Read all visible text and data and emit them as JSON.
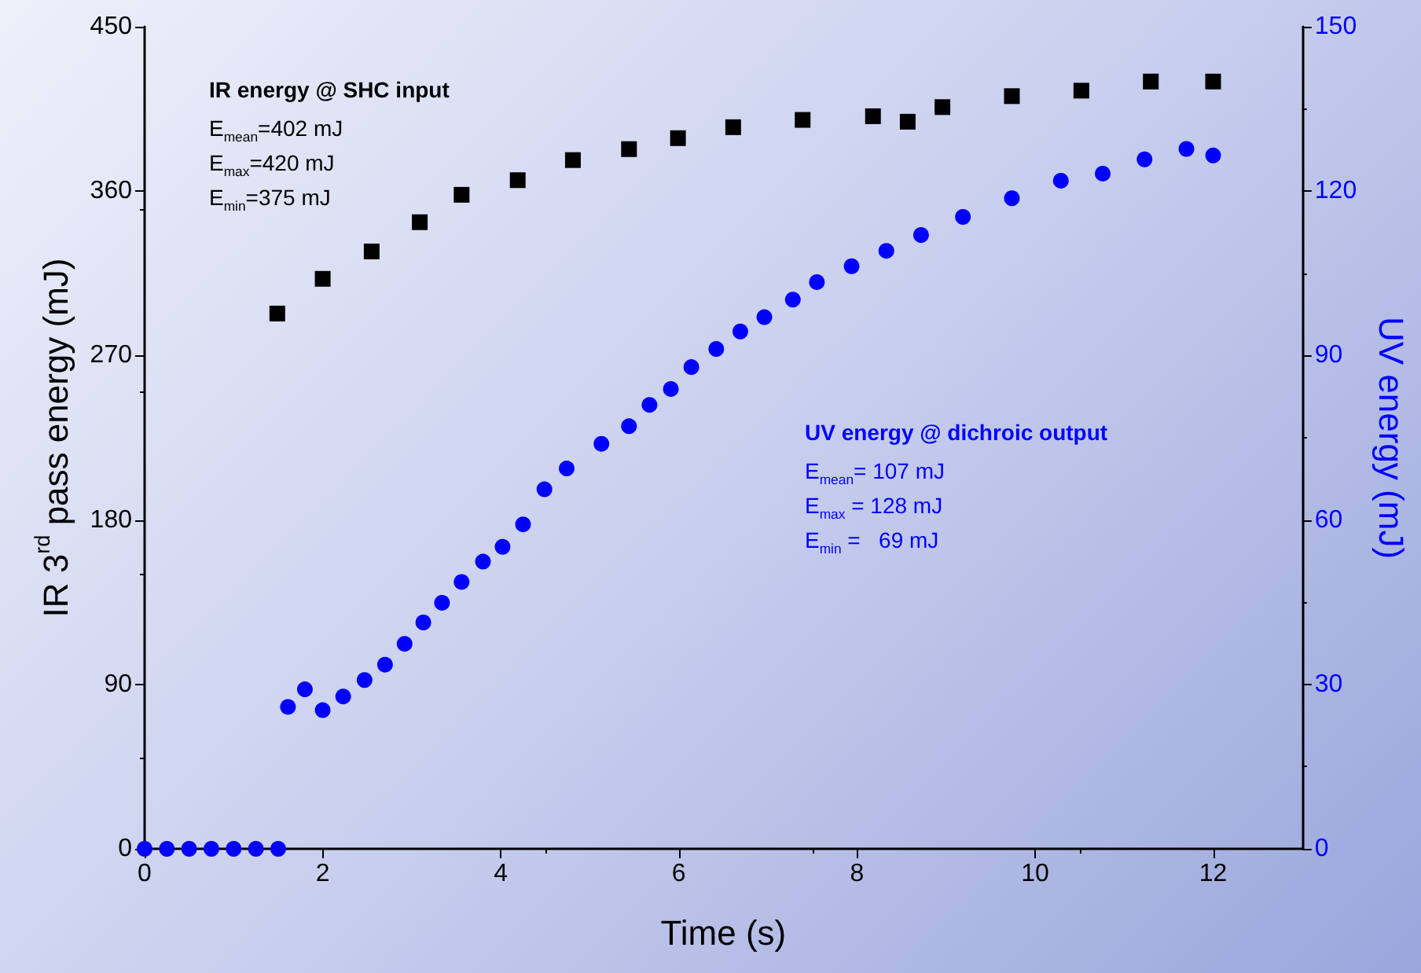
{
  "chart_data": {
    "type": "scatter",
    "xlabel": "Time (s)",
    "ylabel": "IR 3$^{rd}$ pass energy (mJ)",
    "y2label": "UV energy (mJ)",
    "xlim": [
      0,
      13
    ],
    "xticks": [
      0,
      2,
      4,
      6,
      8,
      10,
      12
    ],
    "ylim": [
      0,
      450
    ],
    "yticks": [
      0,
      90,
      180,
      270,
      360,
      450
    ],
    "y2lim": [
      0,
      150
    ],
    "y2ticks": [
      0,
      30,
      60,
      90,
      120,
      150
    ],
    "grid": false,
    "annotations": [
      "IR energy @ SHC input",
      "E$_{mean}$=402 mJ",
      "E$_{max}$=420 mJ",
      "E$_{min}$=375 mJ",
      "UV energy @ dichroic output",
      "E$_{mean}$= 107 mJ",
      "E$_{max}$ = 128 mJ",
      "E$_{min}$ =   69 mJ"
    ],
    "series": [
      {
        "color": "#000000",
        "marker": "square",
        "x": [
          1.49,
          2.0,
          2.55,
          3.09,
          3.56,
          4.19,
          4.81,
          5.44,
          5.99,
          6.61,
          7.39,
          8.18,
          8.57,
          8.96,
          9.74,
          10.52,
          11.3,
          12.0
        ],
        "values": [
          293,
          312,
          327,
          343,
          358,
          366,
          377,
          383,
          389,
          395,
          399,
          401,
          398,
          406,
          412,
          415,
          420,
          420
        ]
      },
      {
        "color": "#0000ff",
        "marker": "circle",
        "axis": "y2",
        "x": [
          0,
          0.25,
          0.5,
          0.75,
          1.0,
          1.25,
          1.5,
          1.61,
          1.8,
          2.0,
          2.23,
          2.47,
          2.7,
          2.92,
          3.13,
          3.34,
          3.56,
          3.8,
          4.02,
          4.25,
          4.49,
          4.74,
          5.13,
          5.44,
          5.67,
          5.91,
          6.14,
          6.42,
          6.69,
          6.96,
          7.28,
          7.55,
          7.94,
          8.33,
          8.72,
          9.19,
          9.74,
          10.29,
          10.76,
          11.23,
          11.7,
          12.0
        ],
        "values": [
          0,
          0,
          0,
          0,
          0,
          0,
          0,
          25.9,
          29.1,
          25.3,
          27.8,
          30.8,
          33.6,
          37.4,
          41.3,
          44.9,
          48.7,
          52.4,
          55.1,
          59.2,
          65.6,
          69.4,
          73.9,
          77.1,
          81.0,
          83.9,
          87.9,
          91.2,
          94.4,
          97.0,
          100.2,
          103.4,
          106.3,
          109.1,
          112.0,
          115.3,
          118.7,
          121.9,
          123.2,
          125.8,
          127.7,
          126.5
        ]
      }
    ]
  }
}
